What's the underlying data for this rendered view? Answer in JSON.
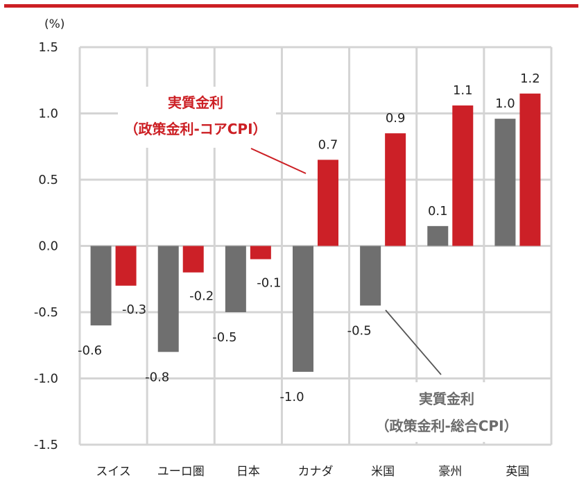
{
  "colors": {
    "topbar": "#cc1f24",
    "core": "#cc2027",
    "headline": "#6f6f6f",
    "grid": "#d4d4d4"
  },
  "chart_data": {
    "type": "bar",
    "unit": "(%)",
    "ylim": [
      -1.5,
      1.5
    ],
    "yticks": [
      "1.5",
      "1.0",
      "0.5",
      "0.0",
      "-0.5",
      "-1.0",
      "-1.5"
    ],
    "categories": [
      "スイス",
      "ユーロ圏",
      "日本",
      "カナダ",
      "米国",
      "豪州",
      "英国"
    ],
    "series": [
      {
        "name": "実質金利（政策金利-総合CPI）",
        "values": [
          -0.6,
          -0.8,
          -0.5,
          -0.95,
          -0.45,
          0.15,
          0.96
        ],
        "labels": [
          "-0.6",
          "-0.8",
          "-0.5",
          "-1.0",
          "-0.5",
          "0.1",
          "1.0"
        ]
      },
      {
        "name": "実質金利（政策金利-コアCPI）",
        "values": [
          -0.3,
          -0.2,
          -0.1,
          0.65,
          0.85,
          1.06,
          1.15
        ],
        "labels": [
          "-0.3",
          "-0.2",
          "-0.1",
          "0.7",
          "0.9",
          "1.1",
          "1.2"
        ]
      }
    ],
    "annotations": {
      "core_line1": "実質金利",
      "core_line2": "（政策金利-コアCPI）",
      "headline_line1": "実質金利",
      "headline_line2": "（政策金利-総合CPI）"
    },
    "grid": "vertical-and-horizontal"
  }
}
